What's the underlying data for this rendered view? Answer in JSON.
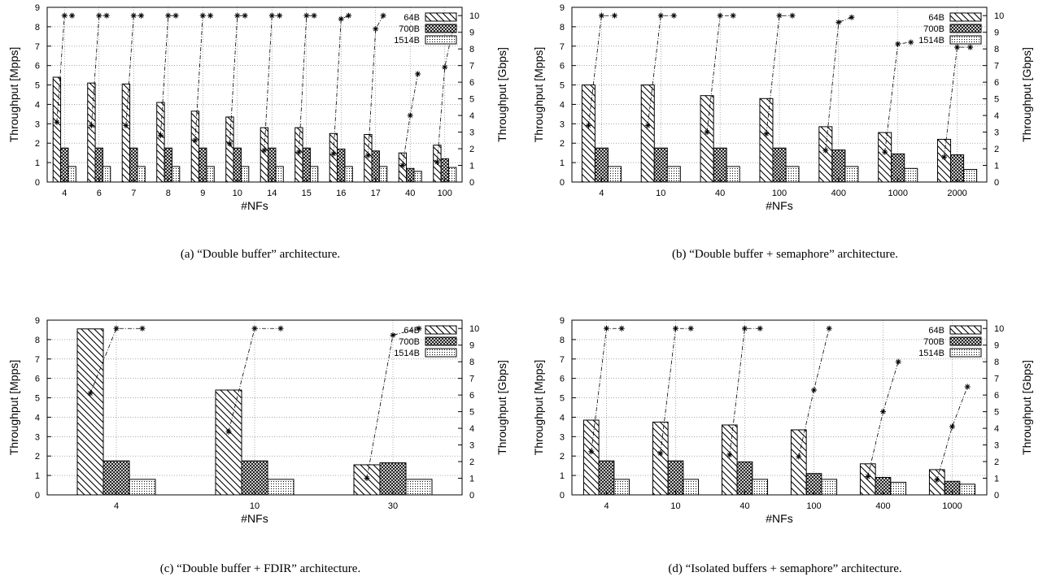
{
  "chart_data": [
    {
      "type": "bar",
      "caption": "(a) “Double buffer” architecture.",
      "xlabel": "#NFs",
      "ylabel": "Throughput [Mpps]",
      "y2label": "Throughput [Gbps]",
      "ylim": [
        0,
        9
      ],
      "y2lim": [
        0,
        10.5
      ],
      "grid": true,
      "legend_position": "top-right",
      "categories": [
        "4",
        "6",
        "7",
        "8",
        "9",
        "10",
        "14",
        "15",
        "16",
        "17",
        "40",
        "100"
      ],
      "series": [
        {
          "name": "64B",
          "pattern": "diagonal",
          "values": [
            5.4,
            5.1,
            5.05,
            4.1,
            3.65,
            3.35,
            2.8,
            2.8,
            2.5,
            2.45,
            1.5,
            1.9
          ]
        },
        {
          "name": "700B",
          "pattern": "crosshatch",
          "values": [
            1.75,
            1.75,
            1.75,
            1.75,
            1.75,
            1.75,
            1.75,
            1.75,
            1.7,
            1.6,
            0.7,
            1.2
          ]
        },
        {
          "name": "1514B",
          "pattern": "dots",
          "values": [
            0.8,
            0.8,
            0.8,
            0.8,
            0.8,
            0.8,
            0.8,
            0.8,
            0.8,
            0.8,
            0.55,
            0.75
          ]
        }
      ],
      "gbps_series": [
        [
          3.6,
          10,
          10
        ],
        [
          3.4,
          10,
          10
        ],
        [
          3.4,
          10,
          10
        ],
        [
          2.8,
          10,
          10
        ],
        [
          2.5,
          10,
          10
        ],
        [
          2.3,
          10,
          10
        ],
        [
          1.9,
          10,
          10
        ],
        [
          1.8,
          10,
          10
        ],
        [
          1.7,
          9.8,
          10
        ],
        [
          1.6,
          9.2,
          10
        ],
        [
          1.0,
          4.0,
          6.5
        ],
        [
          1.2,
          6.9,
          9.1
        ]
      ]
    },
    {
      "type": "bar",
      "caption": "(b) “Double buffer + semaphore” architecture.",
      "xlabel": "#NFs",
      "ylabel": "Throughput [Mpps]",
      "y2label": "Throughput [Gbps]",
      "ylim": [
        0,
        9
      ],
      "y2lim": [
        0,
        10.5
      ],
      "grid": true,
      "legend_position": "top-right",
      "categories": [
        "4",
        "10",
        "40",
        "100",
        "400",
        "1000",
        "2000"
      ],
      "series": [
        {
          "name": "64B",
          "pattern": "diagonal",
          "values": [
            5.0,
            5.0,
            4.45,
            4.3,
            2.85,
            2.55,
            2.2
          ]
        },
        {
          "name": "700B",
          "pattern": "crosshatch",
          "values": [
            1.75,
            1.75,
            1.75,
            1.75,
            1.65,
            1.45,
            1.4
          ]
        },
        {
          "name": "1514B",
          "pattern": "dots",
          "values": [
            0.8,
            0.8,
            0.8,
            0.8,
            0.8,
            0.7,
            0.65
          ]
        }
      ],
      "gbps_series": [
        [
          3.4,
          10,
          10
        ],
        [
          3.4,
          10,
          10
        ],
        [
          3.0,
          10,
          10
        ],
        [
          2.9,
          10,
          10
        ],
        [
          1.9,
          9.6,
          9.9
        ],
        [
          1.8,
          8.3,
          8.4
        ],
        [
          1.5,
          8.1,
          8.1
        ]
      ]
    },
    {
      "type": "bar",
      "caption": "(c) “Double buffer + FDIR” architecture.",
      "xlabel": "#NFs",
      "ylabel": "Throughput [Mpps]",
      "y2label": "Throughput [Gbps]",
      "ylim": [
        0,
        9
      ],
      "y2lim": [
        0,
        10.5
      ],
      "grid": true,
      "legend_position": "top-right",
      "categories": [
        "4",
        "10",
        "30"
      ],
      "series": [
        {
          "name": "64B",
          "pattern": "diagonal",
          "values": [
            8.55,
            5.4,
            1.55
          ]
        },
        {
          "name": "700B",
          "pattern": "crosshatch",
          "values": [
            1.75,
            1.75,
            1.65
          ]
        },
        {
          "name": "1514B",
          "pattern": "dots",
          "values": [
            0.8,
            0.8,
            0.8
          ]
        }
      ],
      "gbps_series": [
        [
          6.1,
          10,
          10
        ],
        [
          3.8,
          10,
          10
        ],
        [
          1.0,
          9.6,
          10
        ]
      ]
    },
    {
      "type": "bar",
      "caption": "(d) “Isolated buffers + semaphore” architecture.",
      "xlabel": "#NFs",
      "ylabel": "Throughput [Mpps]",
      "y2label": "Throughput [Gbps]",
      "ylim": [
        0,
        9
      ],
      "y2lim": [
        0,
        10.5
      ],
      "grid": true,
      "legend_position": "top-right",
      "categories": [
        "4",
        "10",
        "40",
        "100",
        "400",
        "1000"
      ],
      "series": [
        {
          "name": "64B",
          "pattern": "diagonal",
          "values": [
            3.85,
            3.75,
            3.6,
            3.35,
            1.6,
            1.3
          ]
        },
        {
          "name": "700B",
          "pattern": "crosshatch",
          "values": [
            1.75,
            1.75,
            1.7,
            1.1,
            0.9,
            0.7
          ]
        },
        {
          "name": "1514B",
          "pattern": "dots",
          "values": [
            0.8,
            0.8,
            0.8,
            0.8,
            0.65,
            0.55
          ]
        }
      ],
      "gbps_series": [
        [
          2.6,
          10,
          10
        ],
        [
          2.5,
          10,
          10
        ],
        [
          2.4,
          10,
          10
        ],
        [
          2.3,
          6.3,
          10
        ],
        [
          1.1,
          5.0,
          8.0
        ],
        [
          0.9,
          4.1,
          6.5
        ]
      ]
    }
  ]
}
